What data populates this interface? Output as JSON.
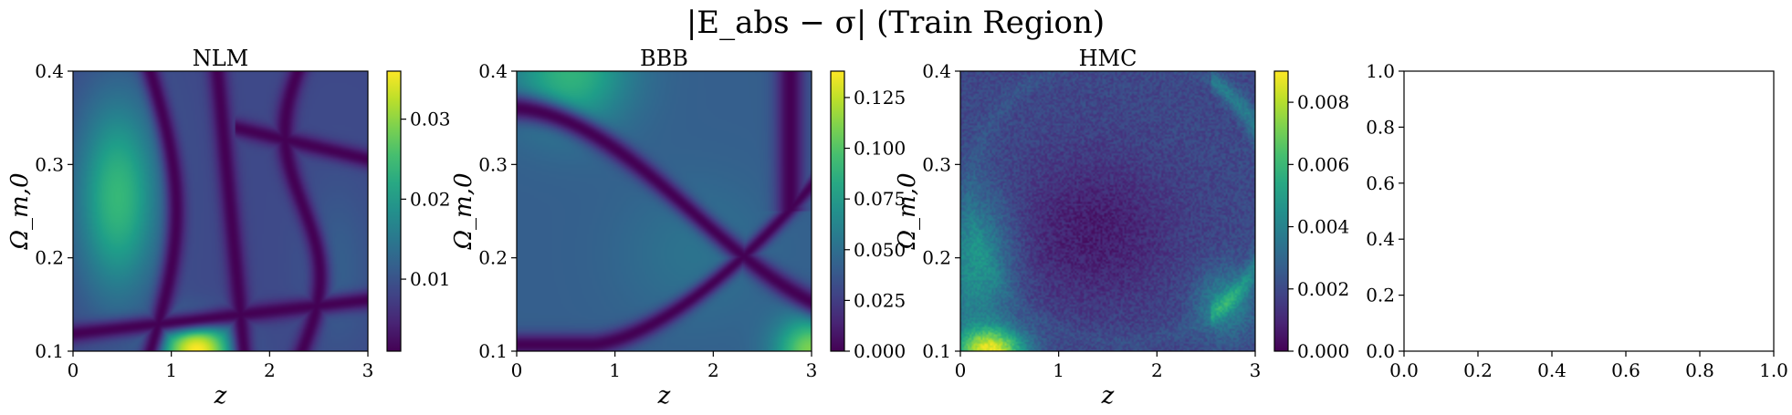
{
  "figure": {
    "title": "|E_abs − σ| (Train Region)"
  },
  "chart_data": [
    {
      "type": "heatmap",
      "title": "NLM",
      "xlabel": "z",
      "ylabel": "Ω_m,0",
      "xlim": [
        0,
        3
      ],
      "ylim": [
        0.1,
        0.4
      ],
      "x_ticks": [
        "0",
        "1",
        "2",
        "3"
      ],
      "y_ticks": [
        "0.1",
        "0.2",
        "0.3",
        "0.4"
      ],
      "colorbar": {
        "colormap": "viridis",
        "range": [
          0.001,
          0.036
        ],
        "ticks": [
          "0.01",
          "0.02",
          "0.03"
        ],
        "tick_values": [
          0.01,
          0.02,
          0.03
        ]
      },
      "features": [
        {
          "z": 1.25,
          "omega": 0.105,
          "value": 0.036
        },
        {
          "z": 0.45,
          "omega": 0.27,
          "value": 0.022
        },
        {
          "z": 2.5,
          "omega": 0.32,
          "value": 0.008
        },
        {
          "z": 2.7,
          "omega": 0.15,
          "value": 0.009
        }
      ]
    },
    {
      "type": "heatmap",
      "title": "BBB",
      "xlabel": "z",
      "ylabel": "Ω_m,0",
      "xlim": [
        0,
        3
      ],
      "ylim": [
        0.1,
        0.4
      ],
      "x_ticks": [
        "0",
        "1",
        "2",
        "3"
      ],
      "y_ticks": [
        "0.1",
        "0.2",
        "0.3",
        "0.4"
      ],
      "colorbar": {
        "colormap": "viridis",
        "range": [
          0,
          0.138
        ],
        "ticks": [
          "0.000",
          "0.025",
          "0.050",
          "0.075",
          "0.100",
          "0.125"
        ],
        "tick_values": [
          0,
          0.025,
          0.05,
          0.075,
          0.1,
          0.125
        ]
      },
      "features": [
        {
          "z": 0.5,
          "omega": 0.39,
          "value": 0.088
        },
        {
          "z": 2.95,
          "omega": 0.11,
          "value": 0.105
        },
        {
          "z": 1.8,
          "omega": 0.22,
          "value": 0.05
        },
        {
          "z": 0.4,
          "omega": 0.25,
          "value": 0.06
        }
      ]
    },
    {
      "type": "heatmap",
      "title": "HMC",
      "xlabel": "z",
      "ylabel": "Ω_m,0",
      "xlim": [
        0,
        3
      ],
      "ylim": [
        0.1,
        0.4
      ],
      "x_ticks": [
        "0",
        "1",
        "2",
        "3"
      ],
      "y_ticks": [
        "0.1",
        "0.2",
        "0.3",
        "0.4"
      ],
      "colorbar": {
        "colormap": "viridis",
        "range": [
          0,
          0.009
        ],
        "ticks": [
          "0.000",
          "0.002",
          "0.004",
          "0.006",
          "0.008"
        ],
        "tick_values": [
          0,
          0.002,
          0.004,
          0.006,
          0.008
        ]
      },
      "features": [
        {
          "z": 0.35,
          "omega": 0.11,
          "value": 0.0075
        },
        {
          "z": 0.15,
          "omega": 0.2,
          "value": 0.004
        },
        {
          "z": 2.7,
          "omega": 0.15,
          "value": 0.0035
        },
        {
          "z": 1.3,
          "omega": 0.23,
          "value": 0.0008
        }
      ]
    },
    {
      "type": "empty",
      "title": "",
      "xlim": [
        0,
        1
      ],
      "ylim": [
        0,
        1
      ],
      "x_ticks": [
        "0.0",
        "0.2",
        "0.4",
        "0.6",
        "0.8",
        "1.0"
      ],
      "y_ticks": [
        "0.0",
        "0.2",
        "0.4",
        "0.6",
        "0.8",
        "1.0"
      ]
    }
  ]
}
